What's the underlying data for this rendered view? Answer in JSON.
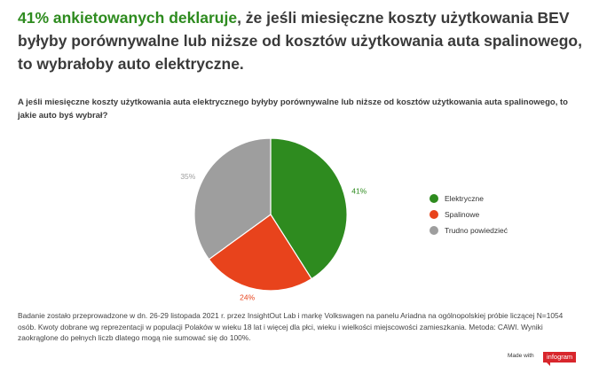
{
  "headline": {
    "accent": "41% ankietowanych deklaruje",
    "rest": ", że jeśli miesięczne koszty użytkowania BEV byłyby porównywalne lub niższe od kosztów użytkowania auta spalinowego, to wybrałoby auto elektryczne."
  },
  "question": "A jeśli miesięczne koszty użytkowania auta elektrycznego byłyby porównywalne lub niższe od kosztów użytkowania auta spalinowego, to jakie auto byś wybrał?",
  "chart_data": {
    "type": "pie",
    "title": "",
    "categories": [
      "Elektryczne",
      "Spalinowe",
      "Trudno powiedzieć"
    ],
    "values": [
      41,
      24,
      35
    ],
    "labels": [
      "41%",
      "24%",
      "35%"
    ],
    "colors": [
      "#2e8b1f",
      "#e8431c",
      "#9e9e9e"
    ],
    "label_colors": [
      "#2e8b1f",
      "#e8431c",
      "#9e9e9e"
    ],
    "legend_position": "right"
  },
  "footnote": "Badanie zostało przeprowadzone w dn. 26-29 listopada 2021 r. przez InsightOut Lab i markę Volkswagen na panelu Ariadna na ogólnopolskiej próbie liczącej N=1054 osób. Kwoty dobrane wg reprezentacji w populacji Polaków w wieku 18 lat i więcej dla płci, wieku i wielkości miejscowości zamieszkania. Metoda: CAWI. Wyniki zaokrąglone do pełnych liczb dlatego mogą nie sumować się do 100%.",
  "branding": {
    "made_with": "Made with",
    "name": "infogram"
  }
}
